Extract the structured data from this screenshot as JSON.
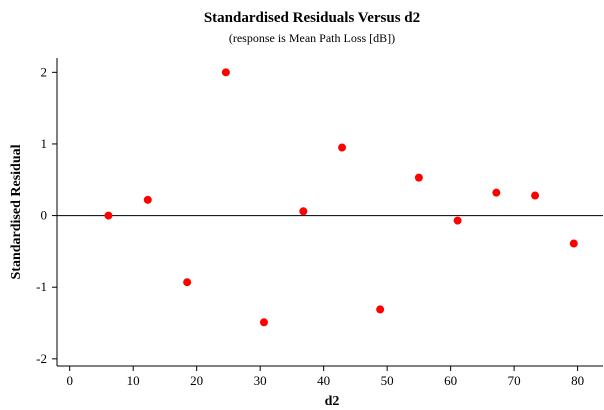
{
  "chart_data": {
    "type": "scatter",
    "title": "Standardised Residuals Versus d2",
    "subtitle": "(response is Mean Path Loss [dB])",
    "xlabel": "d2",
    "ylabel": "Standardised Residual",
    "xlim": [
      -2,
      84
    ],
    "ylim": [
      -2.1,
      2.2
    ],
    "xticks": [
      0,
      10,
      20,
      30,
      40,
      50,
      60,
      70,
      80
    ],
    "yticks": [
      -2,
      -1,
      0,
      1,
      2
    ],
    "reference_line_y": 0,
    "marker_color": "#ff0000",
    "grid": false,
    "points": [
      {
        "x": 6.1,
        "y": 0.0
      },
      {
        "x": 12.3,
        "y": 0.22
      },
      {
        "x": 18.5,
        "y": -0.93
      },
      {
        "x": 24.6,
        "y": 2.0
      },
      {
        "x": 30.6,
        "y": -1.49
      },
      {
        "x": 36.8,
        "y": 0.06
      },
      {
        "x": 42.9,
        "y": 0.95
      },
      {
        "x": 48.9,
        "y": -1.31
      },
      {
        "x": 55.0,
        "y": 0.53
      },
      {
        "x": 61.1,
        "y": -0.07
      },
      {
        "x": 67.2,
        "y": 0.32
      },
      {
        "x": 73.3,
        "y": 0.28
      },
      {
        "x": 79.4,
        "y": -0.39
      }
    ]
  }
}
